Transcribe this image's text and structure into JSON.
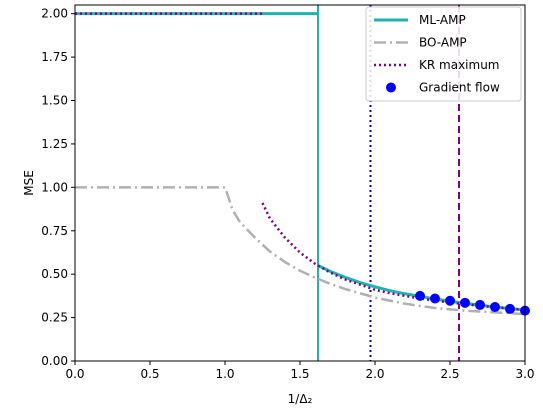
{
  "chart_data": {
    "type": "line",
    "xlabel": "1/Δ₂",
    "ylabel": "MSE",
    "xlim": [
      0.0,
      3.0
    ],
    "ylim": [
      0.0,
      2.05
    ],
    "xticks": [
      0.0,
      0.5,
      1.0,
      1.5,
      2.0,
      2.5,
      3.0
    ],
    "yticks": [
      0.0,
      0.25,
      0.5,
      0.75,
      1.0,
      1.25,
      1.5,
      1.75,
      2.0
    ],
    "xtick_labels": [
      "0.0",
      "0.5",
      "1.0",
      "1.5",
      "2.0",
      "2.5",
      "3.0"
    ],
    "ytick_labels": [
      "0.00",
      "0.25",
      "0.50",
      "0.75",
      "1.00",
      "1.25",
      "1.50",
      "1.75",
      "2.00"
    ],
    "grid": false,
    "legend_position": "top-right",
    "series": [
      {
        "name": "ML-AMP",
        "style": "solid",
        "color": "#20b2b2",
        "segments": [
          {
            "x": [
              0.0,
              1.62
            ],
            "y": [
              2.0,
              2.0
            ]
          },
          {
            "x": [
              1.62,
              1.7,
              1.8,
              1.9,
              2.0,
              2.1,
              2.2,
              2.3,
              2.4,
              2.5,
              2.6,
              2.7,
              2.8,
              2.9,
              3.0
            ],
            "y": [
              0.55,
              0.517,
              0.482,
              0.452,
              0.427,
              0.405,
              0.387,
              0.372,
              0.357,
              0.344,
              0.332,
              0.321,
              0.311,
              0.302,
              0.293
            ]
          }
        ]
      },
      {
        "name": "BO-AMP",
        "style": "dashdot",
        "color": "#b0b0b0",
        "segments": [
          {
            "x": [
              0.0,
              1.0,
              1.02,
              1.05,
              1.1,
              1.2,
              1.3,
              1.4,
              1.5,
              1.6,
              1.7,
              1.8,
              1.9,
              2.0,
              2.2,
              2.4,
              2.6,
              2.8,
              3.0
            ],
            "y": [
              1.0,
              1.0,
              0.95,
              0.87,
              0.8,
              0.71,
              0.63,
              0.57,
              0.52,
              0.48,
              0.445,
              0.415,
              0.39,
              0.365,
              0.33,
              0.305,
              0.29,
              0.28,
              0.27
            ]
          }
        ]
      },
      {
        "name": "KR maximum",
        "style": "dotted",
        "color": "#800080",
        "segments": [
          {
            "x": [
              0.0,
              1.25
            ],
            "y": [
              2.0,
              2.0
            ]
          },
          {
            "x": [
              1.25,
              1.3,
              1.4,
              1.5,
              1.6,
              1.7,
              1.8,
              1.9,
              2.0,
              2.1,
              2.2,
              2.3,
              2.4,
              2.5,
              2.6,
              2.7,
              2.8,
              2.9,
              3.0
            ],
            "y": [
              0.91,
              0.82,
              0.71,
              0.625,
              0.56,
              0.51,
              0.47,
              0.44,
              0.41,
              0.39,
              0.375,
              0.36,
              0.348,
              0.337,
              0.327,
              0.318,
              0.31,
              0.302,
              0.295
            ]
          }
        ]
      },
      {
        "name": "Gradient flow",
        "style": "markers",
        "color": "#0000ff",
        "x": [
          2.3,
          2.4,
          2.5,
          2.6,
          2.7,
          2.8,
          2.9,
          3.0
        ],
        "y": [
          0.375,
          0.36,
          0.347,
          0.335,
          0.323,
          0.311,
          0.3,
          0.29
        ]
      }
    ],
    "vlines": [
      {
        "x": 1.62,
        "style": "solid",
        "color": "#20b2b2"
      },
      {
        "x": 1.97,
        "style": "dotted",
        "color": "#0000cd"
      },
      {
        "x": 2.56,
        "style": "dashed",
        "color": "#800080"
      }
    ]
  }
}
